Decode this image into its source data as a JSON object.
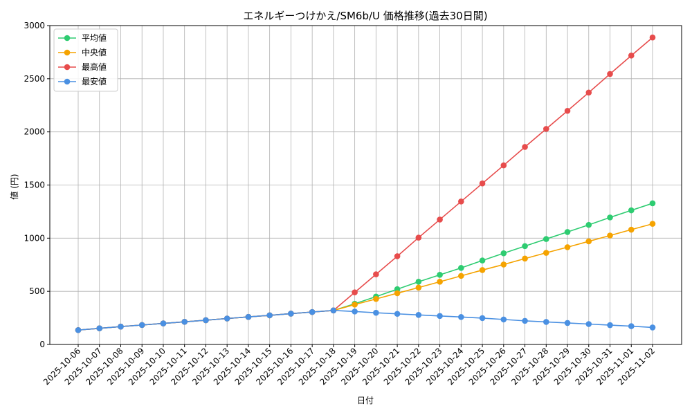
{
  "chart_data": {
    "type": "line",
    "title": "エネルギーつけかえ/SM6b/U 価格推移(過去30日間)",
    "xlabel": "日付",
    "ylabel": "値 (円)",
    "ylim": [
      0,
      3000
    ],
    "yticks": [
      0,
      500,
      1000,
      1500,
      2000,
      2500,
      3000
    ],
    "grid": true,
    "legend_position": "top-left",
    "categories": [
      "2025-10-06",
      "2025-10-07",
      "2025-10-08",
      "2025-10-09",
      "2025-10-10",
      "2025-10-11",
      "2025-10-12",
      "2025-10-13",
      "2025-10-14",
      "2025-10-15",
      "2025-10-16",
      "2025-10-17",
      "2025-10-18",
      "2025-10-19",
      "2025-10-20",
      "2025-10-21",
      "2025-10-22",
      "2025-10-23",
      "2025-10-24",
      "2025-10-25",
      "2025-10-26",
      "2025-10-27",
      "2025-10-28",
      "2025-10-29",
      "2025-10-30",
      "2025-10-31",
      "2025-11-01",
      "2025-11-02"
    ],
    "series": [
      {
        "name": "平均値",
        "color": "#2ecc71",
        "values": [
          135,
          152,
          168,
          183,
          198,
          213,
          228,
          244,
          259,
          274,
          290,
          305,
          320,
          383,
          450,
          520,
          590,
          655,
          720,
          790,
          858,
          925,
          992,
          1058,
          1125,
          1195,
          1262,
          1328
        ]
      },
      {
        "name": "中央値",
        "color": "#f5a300",
        "values": [
          135,
          152,
          168,
          183,
          198,
          213,
          228,
          244,
          259,
          274,
          290,
          305,
          320,
          375,
          428,
          482,
          535,
          590,
          645,
          700,
          752,
          808,
          862,
          915,
          970,
          1025,
          1080,
          1135
        ]
      },
      {
        "name": "最高値",
        "color": "#e74c4c",
        "values": [
          135,
          152,
          168,
          183,
          198,
          213,
          228,
          244,
          259,
          274,
          290,
          305,
          320,
          490,
          660,
          830,
          1005,
          1175,
          1345,
          1515,
          1685,
          1858,
          2028,
          2198,
          2370,
          2545,
          2718,
          2888
        ]
      },
      {
        "name": "最安値",
        "color": "#4a90e2",
        "values": [
          135,
          152,
          168,
          183,
          198,
          213,
          228,
          244,
          259,
          274,
          290,
          305,
          320,
          310,
          298,
          288,
          278,
          268,
          258,
          248,
          235,
          222,
          212,
          202,
          192,
          182,
          172,
          160
        ]
      }
    ]
  }
}
